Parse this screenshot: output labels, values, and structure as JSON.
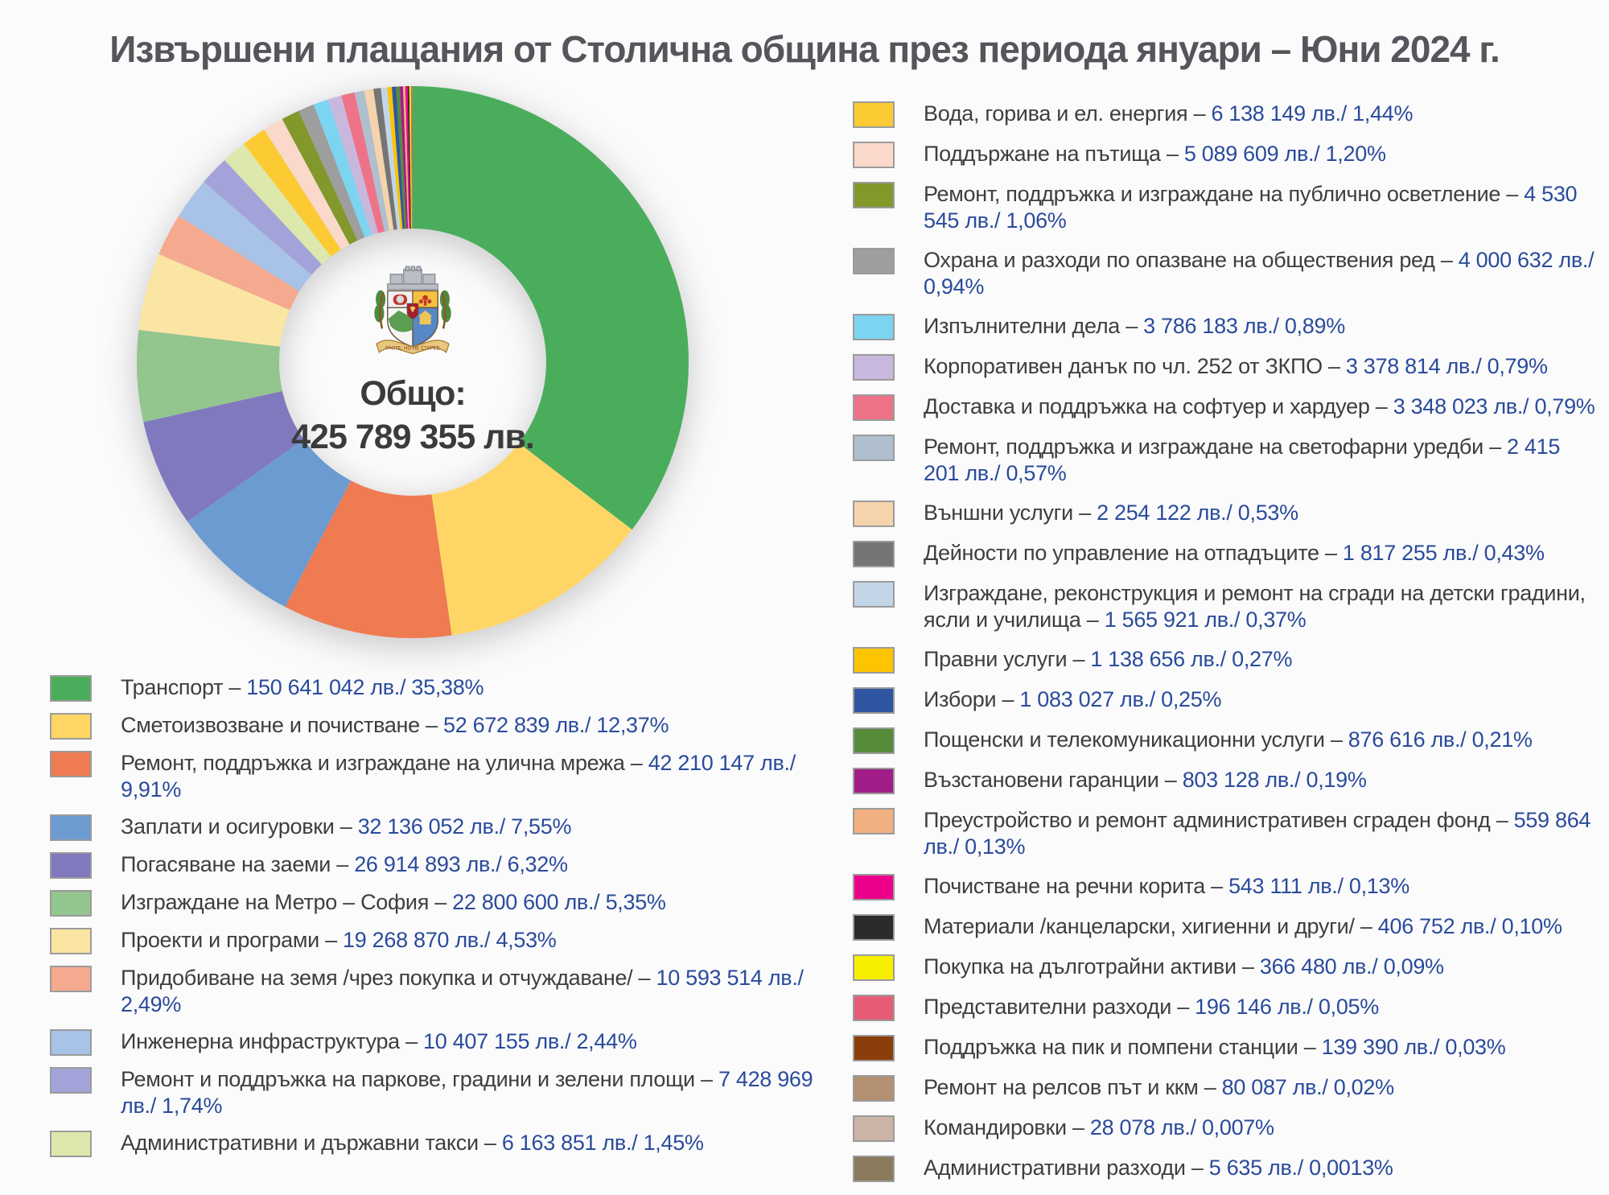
{
  "title": "Извършени плащания от Столична община през периода януари – Юни 2024 г.",
  "donut_center": {
    "heading": "Общо:",
    "total": "425 789 355 лв.",
    "motto": "РАСТЕ, НО НЕ СТАРЕЕ"
  },
  "colors": {
    "title_text": "#55565c",
    "label_text": "#3d3e40",
    "value_text": "#2a4b9b",
    "swatch_border": "#9b9b9b"
  },
  "chart_data": {
    "type": "pie",
    "variant": "donut",
    "title": "Извършени плащания от Столична община през периода януари – Юни 2024 г.",
    "center_label": "Общо:",
    "center_value_text": "425 789 355 лв.",
    "total_value": 425789355,
    "currency": "лв.",
    "start_angle_deg": -90,
    "direction": "clockwise",
    "legend_position": "left-bottom and right column",
    "slices": [
      {
        "label": "Транспорт",
        "value": 150641042,
        "percent": 35.38,
        "value_display": "150 641 042 лв./ 35,38%",
        "color": "#4aad5c",
        "column": "left"
      },
      {
        "label": "Сметоизвозване и почистване",
        "value": 52672839,
        "percent": 12.37,
        "value_display": "52 672 839 лв./ 12,37%",
        "color": "#ffd666",
        "column": "left"
      },
      {
        "label": "Ремонт, поддръжка и изграждане на улична мрежа",
        "value": 42210147,
        "percent": 9.91,
        "value_display": "42 210 147 лв./ 9,91%",
        "color": "#ef7b52",
        "column": "left"
      },
      {
        "label": "Заплати и осигуровки",
        "value": 32136052,
        "percent": 7.55,
        "value_display": "32 136 052 лв./ 7,55%",
        "color": "#6c9bd2",
        "column": "left"
      },
      {
        "label": "Погасяване на заеми",
        "value": 26914893,
        "percent": 6.32,
        "value_display": "26 914 893 лв./ 6,32%",
        "color": "#8179be",
        "column": "left"
      },
      {
        "label": "Изграждане на Метро – София",
        "value": 22800600,
        "percent": 5.35,
        "value_display": "22 800 600 лв./ 5,35%",
        "color": "#93c58f",
        "column": "left"
      },
      {
        "label": "Проекти и програми",
        "value": 19268870,
        "percent": 4.53,
        "value_display": "19 268 870 лв./ 4,53%",
        "color": "#fbe5a3",
        "column": "left"
      },
      {
        "label": "Придобиване на земя /чрез покупка и отчуждаване/",
        "value": 10593514,
        "percent": 2.49,
        "value_display": "10 593 514 лв./ 2,49%",
        "color": "#f5a98e",
        "column": "left"
      },
      {
        "label": "Инженерна инфраструктура",
        "value": 10407155,
        "percent": 2.44,
        "value_display": "10 407 155 лв./ 2,44%",
        "color": "#a9c3e8",
        "column": "left"
      },
      {
        "label": "Ремонт и поддръжка на паркове, градини и зелени площи",
        "value": 7428969,
        "percent": 1.74,
        "value_display": "7 428 969 лв./ 1,74%",
        "color": "#a3a3d9",
        "column": "left"
      },
      {
        "label": "Административни и държавни такси",
        "value": 6163851,
        "percent": 1.45,
        "value_display": "6 163 851 лв./ 1,45%",
        "color": "#dde8ac",
        "column": "left"
      },
      {
        "label": "Вода, горива и ел. енергия",
        "value": 6138149,
        "percent": 1.44,
        "value_display": "6 138 149 лв./ 1,44%",
        "color": "#fccb33",
        "column": "right"
      },
      {
        "label": "Поддържане на пътища",
        "value": 5089609,
        "percent": 1.2,
        "value_display": "5 089 609 лв./ 1,20%",
        "color": "#fad8ca",
        "column": "right"
      },
      {
        "label": "Ремонт, поддръжка и изграждане на публично осветление",
        "value": 4530545,
        "percent": 1.06,
        "value_display": "4 530 545 лв./ 1,06%",
        "color": "#82982a",
        "column": "right"
      },
      {
        "label": "Охрана и разходи по опазване на обществения ред",
        "value": 4000632,
        "percent": 0.94,
        "value_display": "4 000 632 лв./ 0,94%",
        "color": "#9e9e9e",
        "column": "right"
      },
      {
        "label": "Изпълнителни дела",
        "value": 3786183,
        "percent": 0.89,
        "value_display": "3 786 183 лв./ 0,89%",
        "color": "#7dd4f0",
        "column": "right"
      },
      {
        "label": "Корпоративен данък по чл. 252 от ЗКПО",
        "value": 3378814,
        "percent": 0.79,
        "value_display": "3 378 814 лв./ 0,79%",
        "color": "#c9b8de",
        "column": "right"
      },
      {
        "label": "Доставка и поддръжка на софтуер и хардуер",
        "value": 3348023,
        "percent": 0.79,
        "value_display": "3 348 023 лв./ 0,79%",
        "color": "#ee7388",
        "column": "right"
      },
      {
        "label": "Ремонт, поддръжка и изграждане на светофарни уредби",
        "value": 2415201,
        "percent": 0.57,
        "value_display": "2 415 201 лв./ 0,57%",
        "color": "#afbfce",
        "column": "right"
      },
      {
        "label": "Външни услуги",
        "value": 2254122,
        "percent": 0.53,
        "value_display": "2 254 122 лв./ 0,53%",
        "color": "#f5d3ac",
        "column": "right"
      },
      {
        "label": "Дейности по управление на отпадъците",
        "value": 1817255,
        "percent": 0.43,
        "value_display": "1 817 255 лв./ 0,43%",
        "color": "#757575",
        "column": "right"
      },
      {
        "label": "Изграждане, реконструкция и ремонт на сгради на детски градини, ясли и училища",
        "value": 1565921,
        "percent": 0.37,
        "value_display": "1 565 921 лв./ 0,37%",
        "color": "#c2d6e8",
        "column": "right"
      },
      {
        "label": "Правни услуги",
        "value": 1138656,
        "percent": 0.27,
        "value_display": "1 138 656 лв./ 0,27%",
        "color": "#fdc500",
        "column": "right"
      },
      {
        "label": "Избори",
        "value": 1083027,
        "percent": 0.25,
        "value_display": "1 083 027 лв./ 0,25%",
        "color": "#3056a2",
        "column": "right"
      },
      {
        "label": "Пощенски и телекомуникационни услуги",
        "value": 876616,
        "percent": 0.21,
        "value_display": "876 616 лв./ 0,21%",
        "color": "#568b3a",
        "column": "right"
      },
      {
        "label": "Възстановени гаранции",
        "value": 803128,
        "percent": 0.19,
        "value_display": "803 128 лв./ 0,19%",
        "color": "#a21d88",
        "column": "right"
      },
      {
        "label": "Преустройство и ремонт административен сграден фонд",
        "value": 559864,
        "percent": 0.13,
        "value_display": "559 864 лв./ 0,13%",
        "color": "#f2af80",
        "column": "right"
      },
      {
        "label": "Почистване на речни корита",
        "value": 543111,
        "percent": 0.13,
        "value_display": "543 111 лв./ 0,13%",
        "color": "#ec008c",
        "column": "right"
      },
      {
        "label": "Материали /канцеларски, хигиенни и други/",
        "value": 406752,
        "percent": 0.1,
        "value_display": "406 752 лв./ 0,10%",
        "color": "#2b2b2b",
        "column": "right"
      },
      {
        "label": "Покупка на дълготрайни активи",
        "value": 366480,
        "percent": 0.09,
        "value_display": "366 480 лв./ 0,09%",
        "color": "#f7ef00",
        "column": "right"
      },
      {
        "label": "Представителни разходи",
        "value": 196146,
        "percent": 0.05,
        "value_display": "196 146 лв./ 0,05%",
        "color": "#e65c77",
        "column": "right"
      },
      {
        "label": "Поддръжка на пик и помпени станции",
        "value": 139390,
        "percent": 0.03,
        "value_display": "139 390 лв./ 0,03%",
        "color": "#8b3d0b",
        "column": "right"
      },
      {
        "label": "Ремонт на релсов път и ккм",
        "value": 80087,
        "percent": 0.02,
        "value_display": "80 087 лв./ 0,02%",
        "color": "#b39070",
        "column": "right"
      },
      {
        "label": "Командировки",
        "value": 28078,
        "percent": 0.007,
        "value_display": "28 078 лв./ 0,007%",
        "color": "#cbb4a5",
        "column": "right"
      },
      {
        "label": "Административни разходи",
        "value": 5635,
        "percent": 0.0013,
        "value_display": "5 635 лв./ 0,0013%",
        "color": "#8a7b5c",
        "column": "right"
      }
    ]
  }
}
